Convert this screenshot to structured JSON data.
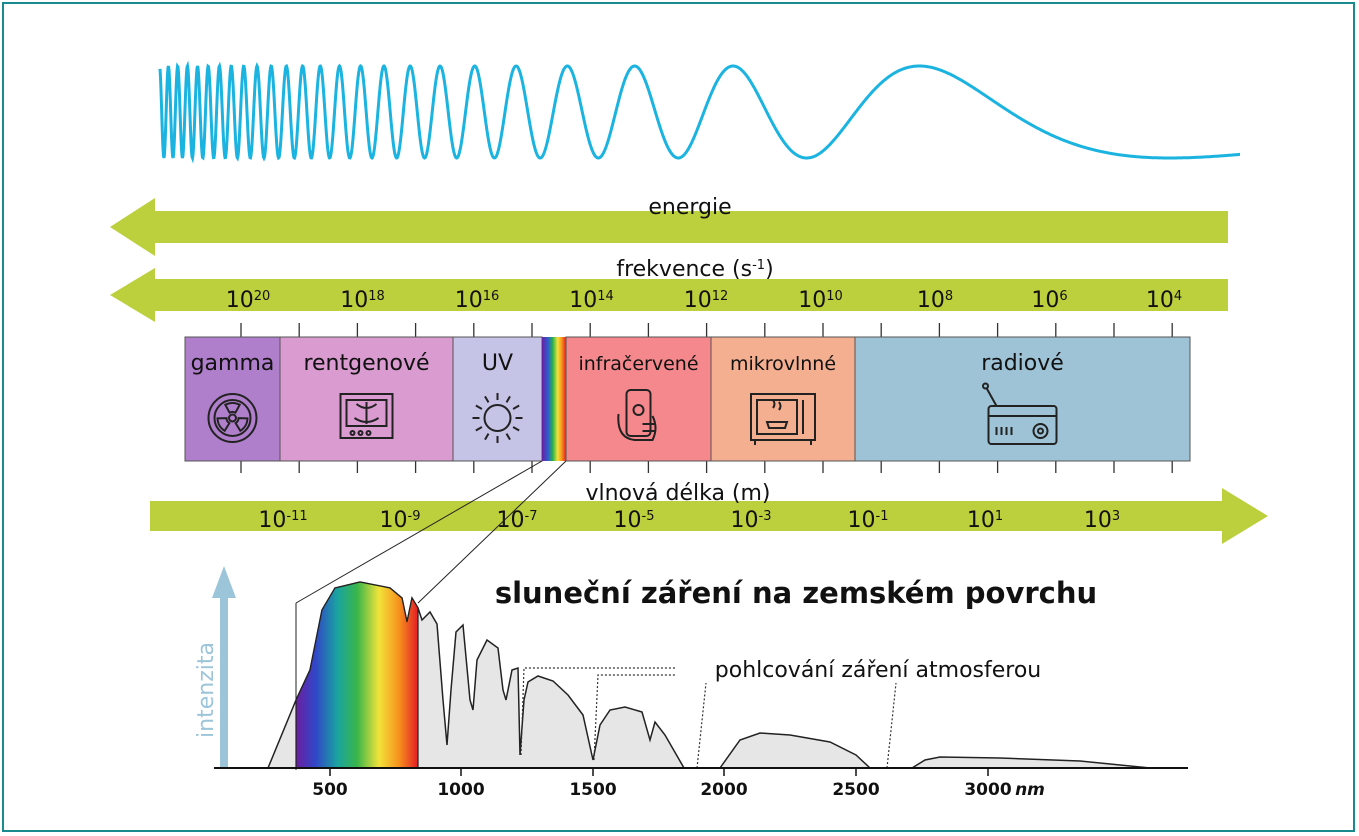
{
  "arrows": {
    "energy_label": "energie",
    "frequency_label": "frekvence (s",
    "frequency_unit_exp": "-1",
    "frequency_label_end": ")",
    "wavelength_label": "vlnová délka (m)",
    "arrow_color": "#bccf3c"
  },
  "frequency_ticks": [
    {
      "base": "10",
      "exp": "20"
    },
    {
      "base": "10",
      "exp": "18"
    },
    {
      "base": "10",
      "exp": "16"
    },
    {
      "base": "10",
      "exp": "14"
    },
    {
      "base": "10",
      "exp": "12"
    },
    {
      "base": "10",
      "exp": "10"
    },
    {
      "base": "10",
      "exp": "8"
    },
    {
      "base": "10",
      "exp": "6"
    },
    {
      "base": "10",
      "exp": "4"
    }
  ],
  "wavelength_ticks": [
    {
      "base": "10",
      "exp": "-11"
    },
    {
      "base": "10",
      "exp": "-9"
    },
    {
      "base": "10",
      "exp": "-7"
    },
    {
      "base": "10",
      "exp": "-5"
    },
    {
      "base": "10",
      "exp": "-3"
    },
    {
      "base": "10",
      "exp": "-1"
    },
    {
      "base": "10",
      "exp": "1"
    },
    {
      "base": "10",
      "exp": "3"
    }
  ],
  "bands": [
    {
      "label": "gamma",
      "icon": "radiation-icon",
      "color": "#b07fcb"
    },
    {
      "label": "rentgenové",
      "icon": "xray-icon",
      "color": "#d99bd0"
    },
    {
      "label": "UV",
      "icon": "sun-icon",
      "color": "#c5c3e6"
    },
    {
      "label": "infračervené",
      "icon": "remote-control-icon",
      "color": "#f4888c"
    },
    {
      "label": "mikrovlnné",
      "icon": "microwave-icon",
      "color": "#f4ae90"
    },
    {
      "label": "radiové",
      "icon": "radio-icon",
      "color": "#9fc3d6"
    }
  ],
  "solar": {
    "title": "sluneční záření na zemském povrchu",
    "absorption_label": "pohlcování záření atmosferou",
    "y_axis_label": "intenzita",
    "x_ticks": [
      "500",
      "1000",
      "1500",
      "2000",
      "2500",
      "3000"
    ],
    "x_unit": "nm",
    "wave_color": "#1bb3e0",
    "axis_arrow_color": "#9dc5da",
    "curve_fill": "#e6e6e6"
  }
}
